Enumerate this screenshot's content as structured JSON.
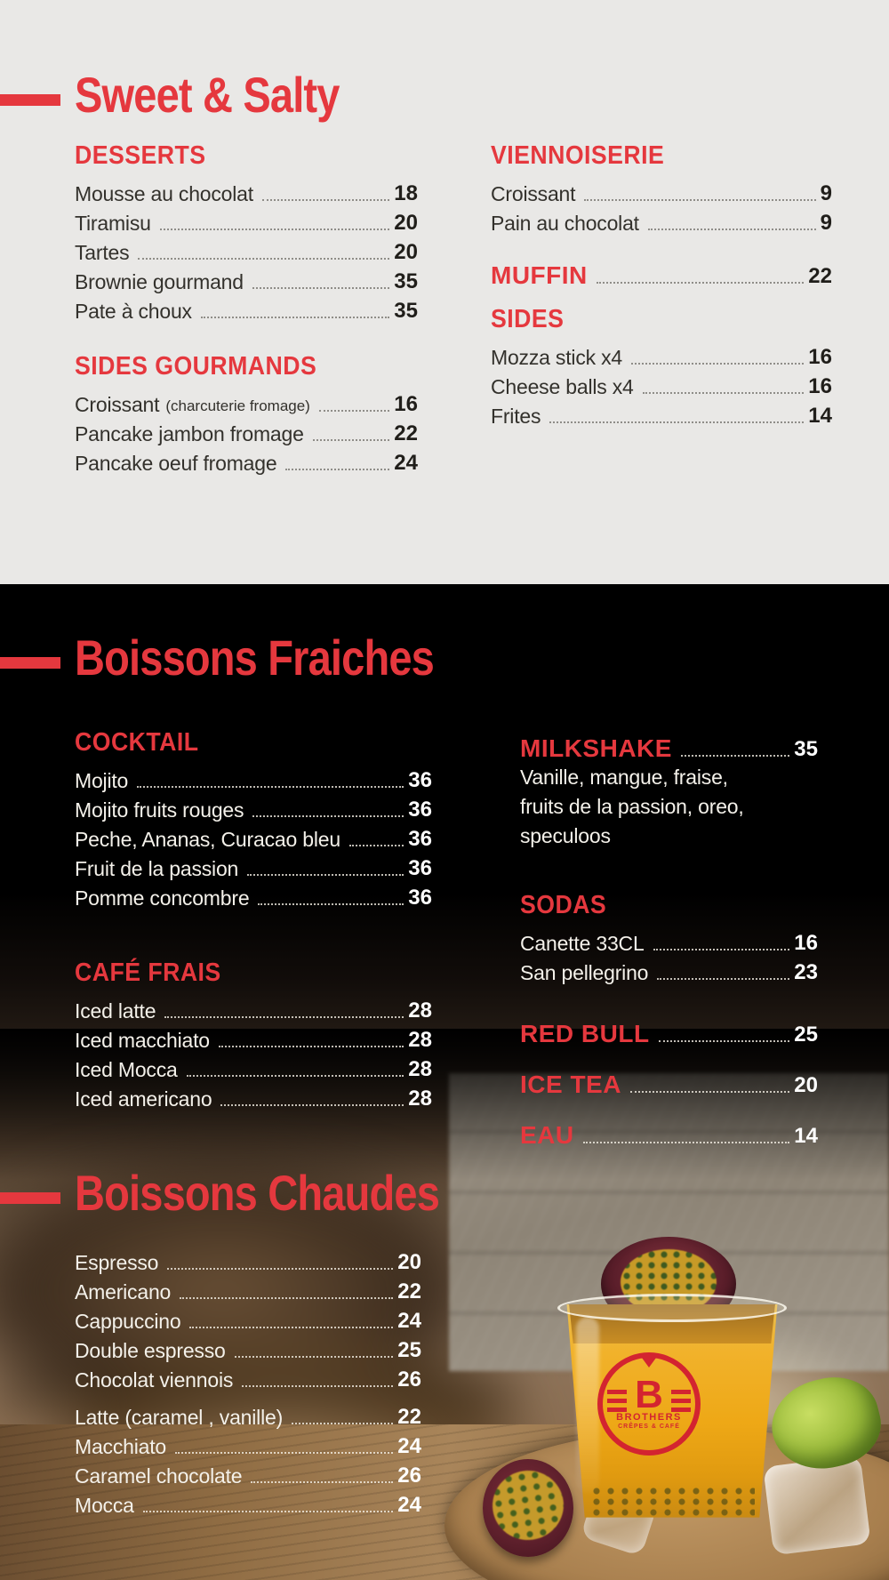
{
  "colors": {
    "accent_red": "#e5383e",
    "light_bg": "#e9e8e6",
    "dark_bg": "#000000",
    "item_ink": "#33312c",
    "item_white": "#f4f1ea",
    "logo_red": "#d32430",
    "drink_yellow": "#eea816"
  },
  "sections": {
    "sweet_salty": {
      "title": "Sweet & Salty",
      "left": {
        "desserts": {
          "heading": "DESSERTS",
          "items": [
            {
              "name": "Mousse au chocolat",
              "price": "18"
            },
            {
              "name": "Tiramisu",
              "price": "20"
            },
            {
              "name": "Tartes",
              "price": "20"
            },
            {
              "name": "Brownie gourmand",
              "price": "35"
            },
            {
              "name": "Pate à choux",
              "price": "35"
            }
          ]
        },
        "sides_gourmands": {
          "heading": "SIDES GOURMANDS",
          "items": [
            {
              "name": "Croissant",
              "note": "(charcuterie fromage)",
              "price": "16"
            },
            {
              "name": "Pancake jambon fromage",
              "price": "22"
            },
            {
              "name": "Pancake oeuf fromage",
              "price": "24"
            }
          ]
        }
      },
      "right": {
        "viennoiserie": {
          "heading": "VIENNOISERIE",
          "items": [
            {
              "name": "Croissant",
              "price": "9"
            },
            {
              "name": "Pain au chocolat",
              "price": "9"
            }
          ]
        },
        "muffin": {
          "heading": "MUFFIN",
          "price": "22"
        },
        "sides": {
          "heading": "SIDES",
          "items": [
            {
              "name": "Mozza stick x4",
              "price": "16"
            },
            {
              "name": "Cheese balls x4",
              "price": "16"
            },
            {
              "name": "Frites",
              "price": "14"
            }
          ]
        }
      }
    },
    "boissons_fraiches": {
      "title": "Boissons Fraiches",
      "cocktail": {
        "heading": "COCKTAIL",
        "items": [
          {
            "name": "Mojito",
            "price": "36"
          },
          {
            "name": "Mojito fruits rouges",
            "price": "36"
          },
          {
            "name": "Peche, Ananas, Curacao bleu",
            "price": "36"
          },
          {
            "name": "Fruit de la passion",
            "price": "36"
          },
          {
            "name": "Pomme concombre",
            "price": "36"
          }
        ]
      },
      "cafe_frais": {
        "heading": "CAFÉ FRAIS",
        "items": [
          {
            "name": "Iced latte",
            "price": "28"
          },
          {
            "name": "Iced macchiato",
            "price": "28"
          },
          {
            "name": "Iced Mocca",
            "price": "28"
          },
          {
            "name": "Iced americano",
            "price": "28"
          }
        ]
      },
      "milkshake": {
        "heading": "MILKSHAKE",
        "price": "35",
        "desc": [
          "Vanille, mangue, fraise,",
          "fruits de la passion, oreo,",
          "speculoos"
        ]
      },
      "sodas": {
        "heading": "SODAS",
        "items": [
          {
            "name": "Canette 33CL",
            "price": "16"
          },
          {
            "name": "San pellegrino",
            "price": "23"
          }
        ]
      },
      "red_bull": {
        "heading": "RED BULL",
        "price": "25"
      },
      "ice_tea": {
        "heading": "ICE TEA",
        "price": "20"
      },
      "eau": {
        "heading": "EAU",
        "price": "14"
      }
    },
    "boissons_chaudes": {
      "title": "Boissons Chaudes",
      "group1": [
        {
          "name": "Espresso",
          "price": "20"
        },
        {
          "name": "Americano",
          "price": "22"
        },
        {
          "name": "Cappuccino",
          "price": "24"
        },
        {
          "name": "Double espresso",
          "price": "25"
        },
        {
          "name": "Chocolat viennois",
          "price": "26"
        }
      ],
      "group2": [
        {
          "name": "Latte (caramel , vanille)",
          "price": "22"
        },
        {
          "name": "Macchiato",
          "price": "24"
        },
        {
          "name": "Caramel chocolate",
          "price": "26"
        },
        {
          "name": "Mocca",
          "price": "24"
        }
      ]
    }
  },
  "photo": {
    "logo_letter": "B",
    "logo_name": "BROTHERS",
    "logo_tagline": "CRÊPES & CAFÉ"
  }
}
